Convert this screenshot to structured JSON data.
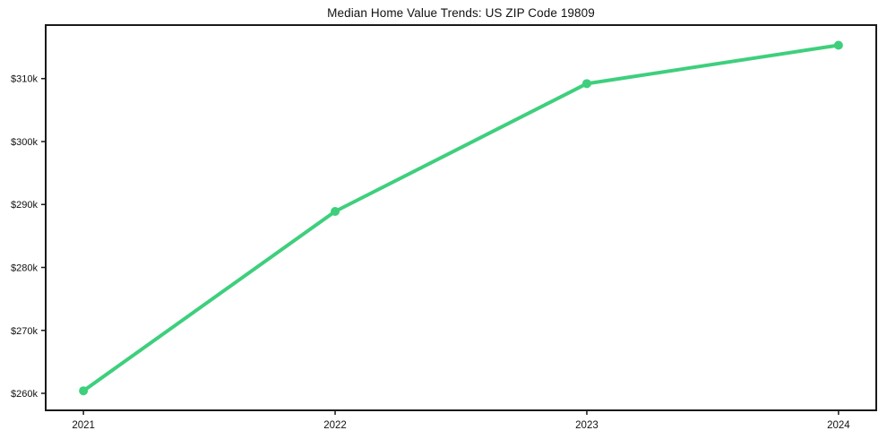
{
  "chart_data": {
    "type": "line",
    "title": "Median Home Value Trends: US ZIP Code 19809",
    "x": [
      2021,
      2022,
      2023,
      2024
    ],
    "x_tick_labels": [
      "2021",
      "2022",
      "2023",
      "2024"
    ],
    "values": [
      260400,
      288900,
      309200,
      315300
    ],
    "y_ticks": [
      260000,
      270000,
      280000,
      290000,
      300000,
      310000
    ],
    "y_tick_labels": [
      "$260k",
      "$270k",
      "$280k",
      "$290k",
      "$300k",
      "$310k"
    ],
    "xlim": [
      2020.85,
      2024.15
    ],
    "ylim": [
      257300,
      318500
    ],
    "xlabel": "",
    "ylabel": "",
    "grid": false,
    "legend_position": "none",
    "line_color": "#3ecf7d",
    "marker": "circle",
    "background_color": "#ffffff",
    "axis_color": "#1a1a1a"
  }
}
